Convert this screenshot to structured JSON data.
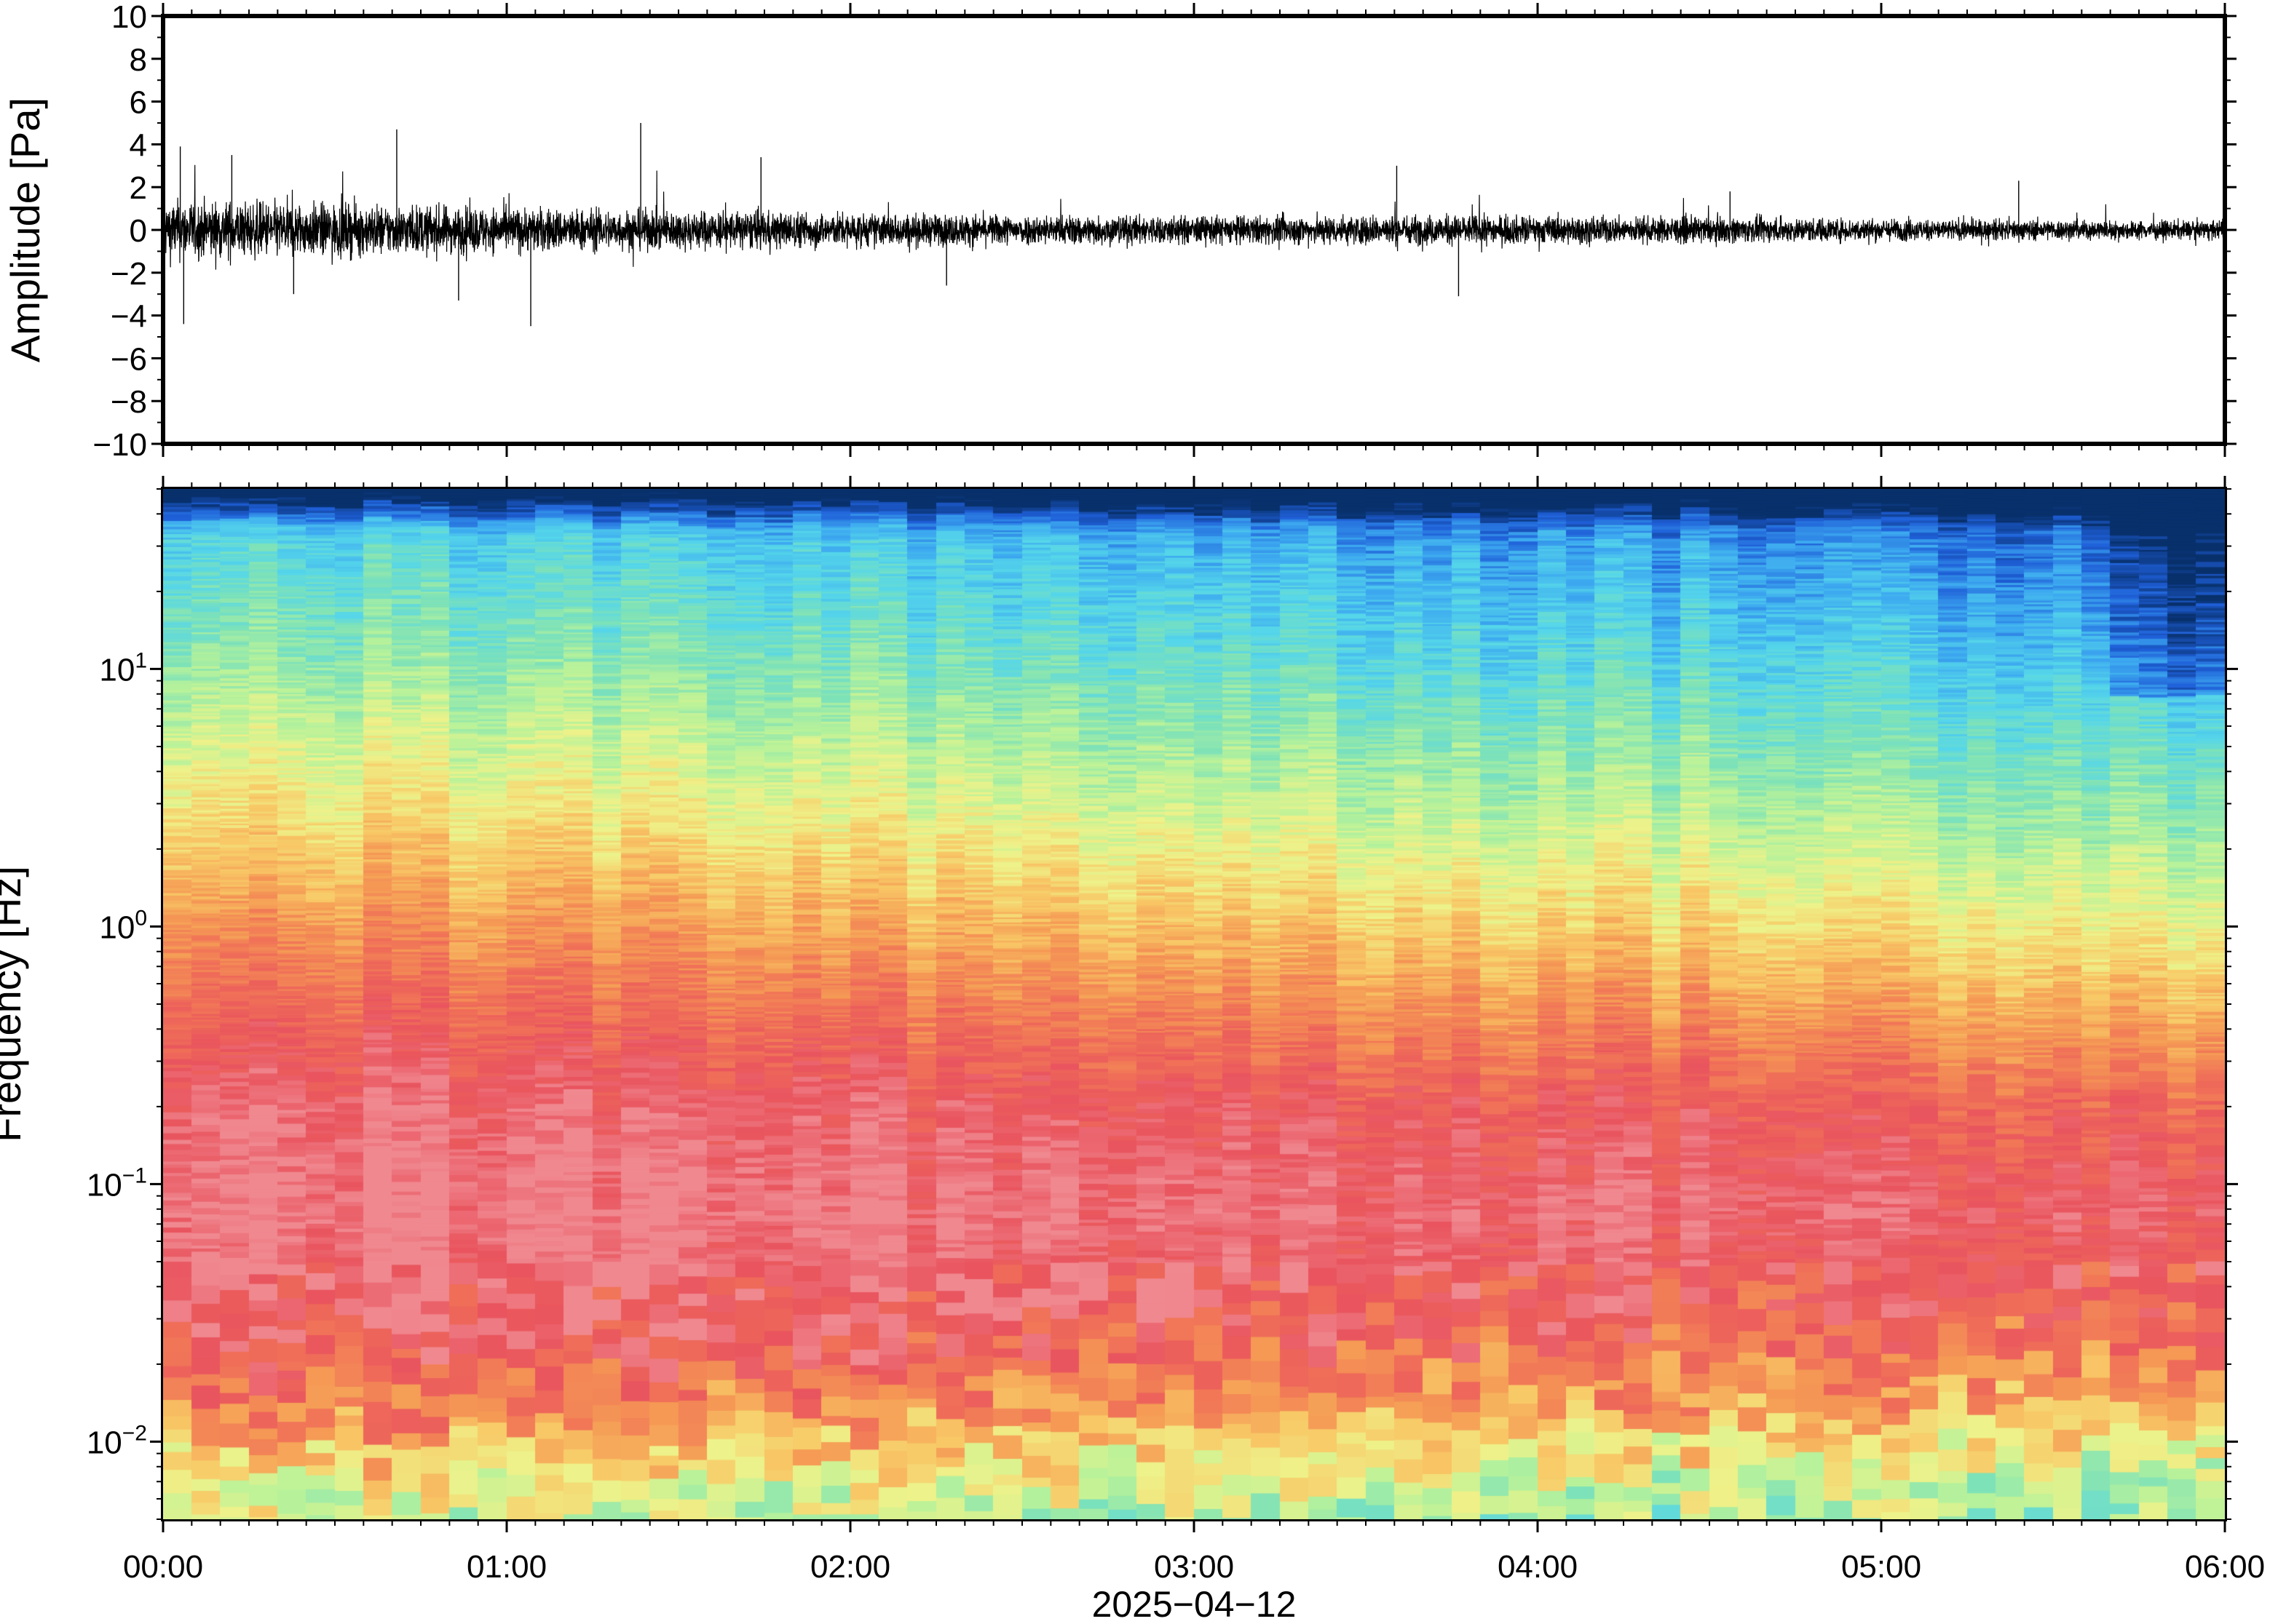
{
  "chart_data": [
    {
      "type": "line",
      "panel": "waveform",
      "ylabel": "Amplitude [Pa]",
      "ylim": [
        -10,
        10
      ],
      "yticks": [
        -10,
        -8,
        -6,
        -4,
        -2,
        0,
        2,
        4,
        6,
        8,
        10
      ],
      "ytick_labels": [
        "−10",
        "−8",
        "−6",
        "−4",
        "−2",
        "0",
        "2",
        "4",
        "6",
        "8",
        "10"
      ],
      "xlim_hours": [
        0,
        6
      ],
      "series": [
        {
          "envelope_hours": [
            0.0,
            0.25,
            0.5,
            0.75,
            1.0,
            1.25,
            1.5,
            1.75,
            2.0,
            2.25,
            2.5,
            2.75,
            3.0,
            3.25,
            3.5,
            3.75,
            4.0,
            4.25,
            4.5,
            4.75,
            5.0,
            5.25,
            5.5,
            5.75,
            6.0
          ],
          "envelope_amplitude": [
            1.6,
            1.5,
            1.4,
            1.3,
            1.2,
            1.1,
            1.05,
            1.0,
            0.9,
            0.85,
            0.8,
            0.8,
            0.75,
            0.75,
            0.8,
            0.8,
            0.75,
            0.7,
            0.7,
            0.65,
            0.6,
            0.55,
            0.55,
            0.5,
            0.5
          ],
          "peaks": [
            {
              "x": 0.05,
              "y": 3.9
            },
            {
              "x": 0.06,
              "y": -4.4
            },
            {
              "x": 0.2,
              "y": 3.5
            },
            {
              "x": 0.38,
              "y": -3.0
            },
            {
              "x": 0.68,
              "y": 4.7
            },
            {
              "x": 0.86,
              "y": -3.3
            },
            {
              "x": 1.07,
              "y": -4.5
            },
            {
              "x": 1.39,
              "y": 5.0
            },
            {
              "x": 1.74,
              "y": 3.4
            },
            {
              "x": 2.28,
              "y": -2.6
            },
            {
              "x": 3.59,
              "y": 3.0
            },
            {
              "x": 3.77,
              "y": -3.1
            },
            {
              "x": 4.56,
              "y": 1.8
            },
            {
              "x": 5.4,
              "y": 2.3
            }
          ]
        }
      ]
    },
    {
      "type": "heatmap",
      "panel": "spectrogram",
      "ylabel": "Frequency [Hz]",
      "y_scale": "log",
      "ylim": [
        0.005,
        50
      ],
      "ytick_mantissa": "10",
      "ytick_exponents": [
        "−2",
        "−1",
        "0",
        "1"
      ],
      "xlim_hours": [
        0,
        6
      ],
      "xtick_labels": [
        "00:00",
        "01:00",
        "02:00",
        "03:00",
        "04:00",
        "05:00",
        "06:00"
      ],
      "xlabel": "2025−04−12",
      "colormap": [
        "#08306b",
        "#1f5fd8",
        "#3da9f0",
        "#55d6ea",
        "#7ee2b8",
        "#b8f29a",
        "#eef28a",
        "#f8c866",
        "#f59a55",
        "#f07058",
        "#e9545e",
        "#f08890"
      ],
      "level_profile": {
        "log_freq": [
          -2.3,
          -2.1,
          -1.85,
          -1.5,
          -1.1,
          -0.7,
          -0.3,
          0.0,
          0.4,
          0.8,
          1.1,
          1.5,
          1.7
        ],
        "level_at_0h": [
          0.5,
          0.58,
          0.78,
          0.95,
          1.0,
          0.97,
          0.86,
          0.76,
          0.62,
          0.5,
          0.4,
          0.3,
          0.1
        ],
        "level_at_6h": [
          0.4,
          0.48,
          0.68,
          0.86,
          0.94,
          0.86,
          0.68,
          0.56,
          0.42,
          0.3,
          0.22,
          0.12,
          0.02
        ]
      }
    }
  ]
}
